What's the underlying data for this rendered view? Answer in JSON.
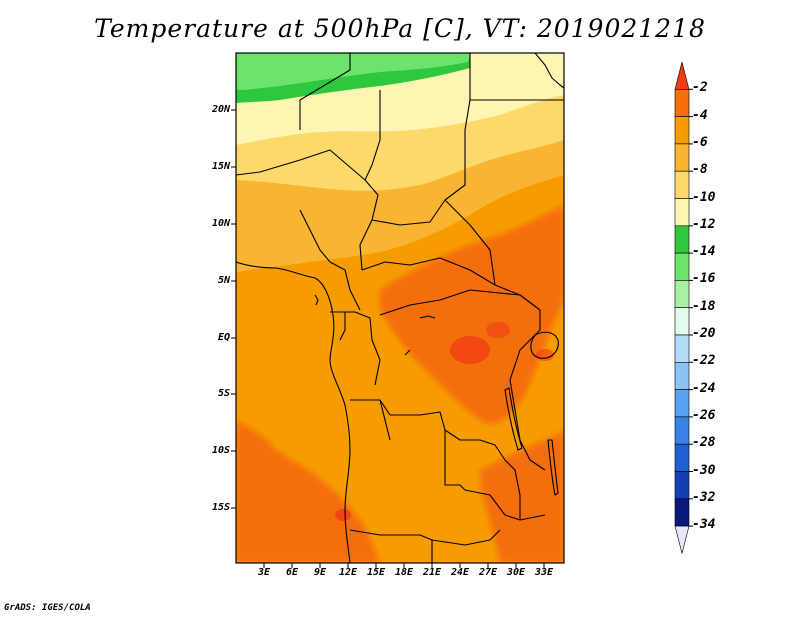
{
  "title": "Temperature at 500hPa [C], VT: 2019021218",
  "credit": "GrADS: IGES/COLA",
  "map": {
    "variable": "Temperature",
    "level": "500hPa",
    "units": "C",
    "valid_time": "2019021218",
    "lat_labels": [
      "20N",
      "15N",
      "10N",
      "5N",
      "EQ",
      "5S",
      "10S",
      "15S"
    ],
    "lon_labels": [
      "3E",
      "6E",
      "9E",
      "12E",
      "15E",
      "18E",
      "21E",
      "24E",
      "27E",
      "30E",
      "33E"
    ]
  },
  "colorbar": {
    "labels": [
      "-2",
      "-4",
      "-6",
      "-8",
      "-10",
      "-12",
      "-14",
      "-16",
      "-18",
      "-20",
      "-22",
      "-24",
      "-26",
      "-28",
      "-30",
      "-32",
      "-34"
    ],
    "colors": [
      "#f03c14",
      "#f56e0a",
      "#f79c00",
      "#f9b431",
      "#fcd96a",
      "#fff5b3",
      "#2ec83e",
      "#6ce46c",
      "#a9f0a4",
      "#e3fcef",
      "#b3dcf9",
      "#8cc3f5",
      "#5aa1ef",
      "#3a82e6",
      "#1f5fd2",
      "#1240b4",
      "#0a1a7a",
      "#e6e6ff"
    ]
  }
}
